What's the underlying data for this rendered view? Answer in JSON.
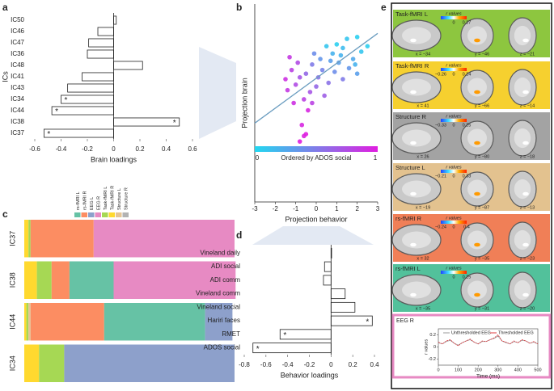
{
  "chart_data": [
    {
      "type": "bar",
      "orientation": "horizontal",
      "panel_label": "a",
      "xlabel": "Brain loadings",
      "ylabel": "ICs",
      "categories": [
        "IC50",
        "IC46",
        "IC47",
        "IC36",
        "IC48",
        "IC41",
        "IC43",
        "IC34",
        "IC44",
        "IC38",
        "IC37"
      ],
      "values": [
        0.02,
        -0.12,
        -0.19,
        -0.2,
        0.22,
        -0.24,
        -0.35,
        -0.4,
        -0.47,
        0.5,
        -0.53
      ],
      "significance": [
        false,
        false,
        false,
        false,
        false,
        false,
        false,
        true,
        true,
        true,
        true
      ],
      "significance_label": "*",
      "color": "#ffffff",
      "xlim": [
        -0.6,
        0.6
      ],
      "xticks": [
        -0.6,
        -0.4,
        -0.2,
        0,
        0.2,
        0.4,
        0.6
      ]
    },
    {
      "type": "scatter",
      "panel_label": "b",
      "xlabel": "Projection behavior",
      "ylabel": "Projection brain",
      "x": [
        1.0,
        1.5,
        2.0,
        1.3,
        2.2,
        0.8,
        1.8,
        0.5,
        1.1,
        2.5,
        0.2,
        1.6,
        0.9,
        0.3,
        1.3,
        -0.2,
        0.6,
        -0.5,
        0.0,
        2.0,
        -0.8,
        -0.3,
        -1.0,
        0.4,
        -1.2,
        -0.6,
        -1.4,
        -0.1,
        -0.9,
        -1.5,
        -1.1,
        -0.4,
        -0.7,
        -0.5,
        -0.8,
        -0.6,
        1.2,
        0.1,
        -1.3,
        1.9,
        0.7,
        -0.2
      ],
      "y": [
        2.0,
        2.3,
        2.4,
        1.8,
        1.6,
        1.5,
        1.2,
        1.9,
        1.0,
        1.9,
        1.2,
        0.7,
        0.5,
        0.6,
        0.1,
        0.9,
        -0.1,
        0.4,
        -0.3,
        0.4,
        0.2,
        -0.6,
        -0.2,
        -0.8,
        0.6,
        -1.0,
        -0.5,
        1.5,
        1.0,
        0.1,
        -1.2,
        -1.6,
        -2.4,
        -2.9,
        -3.3,
        -3.0,
        1.4,
        0.2,
        1.3,
        0.9,
        1.1,
        -1.2
      ],
      "c": [
        0.05,
        0.1,
        0.05,
        0.15,
        0.1,
        0.2,
        0.25,
        0.1,
        0.3,
        0.05,
        0.35,
        0.35,
        0.4,
        0.45,
        0.5,
        0.5,
        0.55,
        0.6,
        0.6,
        0.3,
        0.7,
        0.7,
        0.75,
        0.65,
        0.8,
        0.8,
        0.85,
        0.4,
        0.75,
        0.9,
        0.9,
        0.95,
        0.95,
        1.0,
        1.0,
        0.98,
        0.2,
        0.55,
        0.85,
        0.2,
        0.3,
        0.8
      ],
      "fit": {
        "x": [
          -3,
          3
        ],
        "y": [
          -2.3,
          2.6
        ],
        "color": "#6b9dc0"
      },
      "colorbar": {
        "label": "Ordered by ADOS social",
        "ticks": [
          0,
          1
        ],
        "colors": [
          "#22d8f0",
          "#e01ee0"
        ]
      },
      "xlim": [
        -3,
        3
      ],
      "xticks": [
        -3,
        -2,
        -1,
        0,
        1,
        2,
        3
      ],
      "ylim": [
        -6.6,
        4.2
      ]
    },
    {
      "type": "stacked_bar",
      "orientation": "horizontal",
      "panel_label": "c",
      "categories": [
        "IC37",
        "IC38",
        "IC44",
        "IC34"
      ],
      "xlim": [
        0,
        1
      ],
      "series": [
        {
          "name": "rs-fMRI L",
          "color": "#66c2a5",
          "values": [
            0,
            0.21,
            0.48,
            0
          ]
        },
        {
          "name": "rs-fMRI R",
          "color": "#fc8d62",
          "values": [
            0.3,
            0.085,
            0.35,
            0
          ]
        },
        {
          "name": "EEG L",
          "color": "#8da0cb",
          "values": [
            0,
            0,
            0.13,
            0.81
          ]
        },
        {
          "name": "EEG R",
          "color": "#e78ac3",
          "values": [
            0.67,
            0.58,
            0,
            0
          ]
        },
        {
          "name": "Task-fMRI L",
          "color": "#a6d854",
          "values": [
            0.01,
            0.07,
            0.01,
            0.12
          ]
        },
        {
          "name": "Task-fMRI R",
          "color": "#ffd92f",
          "values": [
            0.02,
            0.06,
            0.01,
            0.07
          ]
        },
        {
          "name": "Structure L",
          "color": "#e5c494",
          "values": [
            0,
            0,
            0.01,
            0
          ]
        },
        {
          "name": "Structure R",
          "color": "#b3b3b3",
          "values": [
            0,
            0,
            0,
            0
          ]
        }
      ]
    },
    {
      "type": "bar",
      "orientation": "horizontal",
      "panel_label": "d",
      "xlabel": "Behavior loadings",
      "categories": [
        "Vineland daily",
        "ADI social",
        "ADI comm",
        "Vineland comm",
        "Vineland social",
        "Hariri faces",
        "RMET",
        "ADOS social"
      ],
      "values": [
        0.005,
        -0.06,
        -0.07,
        0.13,
        0.22,
        0.38,
        -0.47,
        -0.72
      ],
      "significance": [
        false,
        false,
        false,
        false,
        false,
        true,
        true,
        true
      ],
      "significance_label": "*",
      "color": "#ffffff",
      "xlim": [
        -0.8,
        0.4
      ],
      "xticks": [
        -0.8,
        -0.6,
        -0.4,
        -0.2,
        0,
        0.2,
        0.4
      ]
    },
    {
      "type": "line",
      "title": "EEG R",
      "xlabel": "Time (ms)",
      "ylabel": "r values",
      "x": [
        0,
        20,
        40,
        60,
        80,
        100,
        120,
        140,
        160,
        180,
        200,
        220,
        240,
        260,
        280,
        300,
        320,
        340,
        360,
        380,
        400,
        420,
        440,
        460,
        480,
        500
      ],
      "series": [
        {
          "name": "Unthresholded EEG",
          "color": "#9a9a9a",
          "values": [
            0.07,
            0.05,
            0.09,
            0.11,
            0.06,
            0.03,
            0.07,
            0.1,
            0.12,
            0.08,
            0.05,
            0.09,
            0.09,
            0.12,
            0.14,
            0.18,
            0.1,
            0.07,
            0.05,
            0.09,
            0.07,
            0.11,
            0.1,
            0.06,
            0.08,
            0.05
          ]
        },
        {
          "name": "Thresholded EEG",
          "color": "#e0393e",
          "values": [
            0.08,
            0.05,
            0.1,
            0.12,
            0.06,
            0.02,
            0.07,
            0.1,
            0.13,
            0.08,
            0.05,
            0.1,
            0.09,
            0.12,
            0.15,
            0.2,
            0.1,
            0.08,
            0.05,
            0.1,
            0.07,
            0.12,
            0.1,
            0.06,
            0.09,
            0.05
          ]
        }
      ],
      "xlim": [
        0,
        500
      ],
      "xticks": [
        0,
        100,
        200,
        300,
        400,
        500
      ],
      "ylim": [
        -0.3,
        0.3
      ],
      "yticks": [
        -0.2,
        0,
        0.2
      ]
    }
  ],
  "panel_e": {
    "panel_label": "e",
    "scale_label": "r values",
    "maps": [
      {
        "title": "Task-fMRI L",
        "color": "#8dc63f",
        "scale_ticks": [
          "0",
          "0.27"
        ],
        "coords": [
          "x = −34",
          "y = −46",
          "z = −21"
        ]
      },
      {
        "title": "Task-fMRI R",
        "color": "#f6d02f",
        "scale_ticks": [
          "−0.26",
          "0",
          "0.24"
        ],
        "coords": [
          "x = 41",
          "y = −66",
          "z = −14"
        ]
      },
      {
        "title": "Structure R",
        "color": "#a3a3a3",
        "scale_ticks": [
          "−0.33",
          "0",
          "0.25"
        ],
        "coords": [
          "x = 26",
          "y = −80",
          "z = −18"
        ]
      },
      {
        "title": "Structure L",
        "color": "#e3c28f",
        "scale_ticks": [
          "−0.21",
          "0",
          "0.33"
        ],
        "coords": [
          "x = −19",
          "y = −87",
          "z = −13"
        ]
      },
      {
        "title": "rs-fMRI R",
        "color": "#f07f57",
        "scale_ticks": [
          "−0.24",
          "0",
          "0.4"
        ],
        "coords": [
          "x = 32",
          "y = −35",
          "z = −23"
        ]
      },
      {
        "title": "rs-fMRI L",
        "color": "#52c19b",
        "scale_ticks": [
          "0",
          "0.25"
        ],
        "coords": [
          "x = −35",
          "y = −31",
          "z = −20"
        ]
      }
    ]
  }
}
